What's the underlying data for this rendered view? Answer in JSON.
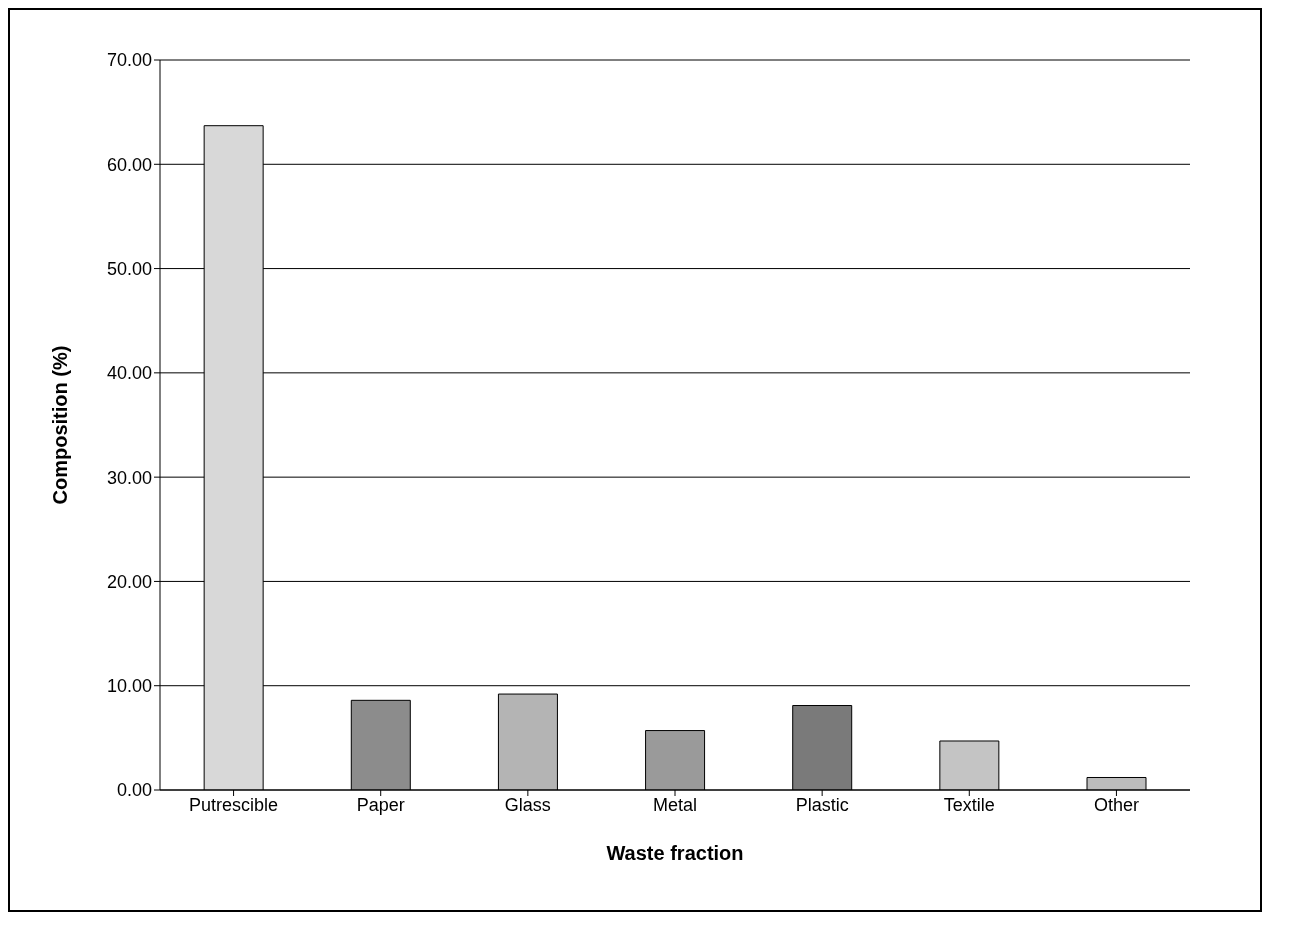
{
  "chart_data": {
    "type": "bar",
    "xlabel": "Waste fraction",
    "ylabel": "Composition (%)",
    "categories": [
      "Putrescible",
      "Paper",
      "Glass",
      "Metal",
      "Plastic",
      "Textile",
      "Other"
    ],
    "values": [
      63.7,
      8.6,
      9.2,
      5.7,
      8.1,
      4.7,
      1.2
    ],
    "colors": [
      "#d8d8d8",
      "#8c8c8c",
      "#b4b4b4",
      "#9a9a9a",
      "#7a7a7a",
      "#c4c4c4",
      "#bcbcbc"
    ],
    "ylim": [
      0,
      70
    ],
    "yticks": [
      {
        "value": 0,
        "label": "0.00"
      },
      {
        "value": 10,
        "label": "10.00"
      },
      {
        "value": 20,
        "label": "20.00"
      },
      {
        "value": 30,
        "label": "30.00"
      },
      {
        "value": 40,
        "label": "40.00"
      },
      {
        "value": 50,
        "label": "50.00"
      },
      {
        "value": 60,
        "label": "60.00"
      },
      {
        "value": 70,
        "label": "70.00"
      }
    ],
    "grid": "y"
  }
}
